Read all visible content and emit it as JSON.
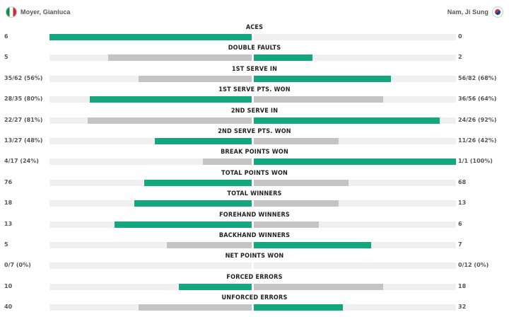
{
  "players": {
    "left": {
      "name": "Moyer, Gianluca",
      "flag": "italy-flag-icon"
    },
    "right": {
      "name": "Nam, Ji Sung",
      "flag": "south-korea-flag-icon"
    }
  },
  "colors": {
    "win": "#14a67f",
    "lose": "#c4c4c4",
    "track": "#f0f0f0"
  },
  "stats": [
    {
      "label": "ACES",
      "left": "6",
      "right": "0",
      "left_fraction": 1.0,
      "right_fraction": 0.0,
      "left_wins": true
    },
    {
      "label": "DOUBLE FAULTS",
      "left": "5",
      "right": "2",
      "left_fraction": 0.71,
      "right_fraction": 0.29,
      "left_wins": false
    },
    {
      "label": "1ST SERVE IN",
      "left": "35/62 (56%)",
      "right": "56/82 (68%)",
      "left_fraction": 0.56,
      "right_fraction": 0.68,
      "left_wins": false
    },
    {
      "label": "1ST SERVE PTS. WON",
      "left": "28/35 (80%)",
      "right": "36/56 (64%)",
      "left_fraction": 0.8,
      "right_fraction": 0.64,
      "left_wins": true
    },
    {
      "label": "2ND SERVE IN",
      "left": "22/27 (81%)",
      "right": "24/26 (92%)",
      "left_fraction": 0.81,
      "right_fraction": 0.92,
      "left_wins": false
    },
    {
      "label": "2ND SERVE PTS. WON",
      "left": "13/27 (48%)",
      "right": "11/26 (42%)",
      "left_fraction": 0.48,
      "right_fraction": 0.42,
      "left_wins": true
    },
    {
      "label": "BREAK POINTS WON",
      "left": "4/17 (24%)",
      "right": "1/1 (100%)",
      "left_fraction": 0.24,
      "right_fraction": 1.0,
      "left_wins": false
    },
    {
      "label": "TOTAL POINTS WON",
      "left": "76",
      "right": "68",
      "left_fraction": 0.53,
      "right_fraction": 0.47,
      "left_wins": true
    },
    {
      "label": "TOTAL WINNERS",
      "left": "18",
      "right": "13",
      "left_fraction": 0.58,
      "right_fraction": 0.42,
      "left_wins": true
    },
    {
      "label": "FOREHAND WINNERS",
      "left": "13",
      "right": "6",
      "left_fraction": 0.68,
      "right_fraction": 0.32,
      "left_wins": true
    },
    {
      "label": "BACKHAND WINNERS",
      "left": "5",
      "right": "7",
      "left_fraction": 0.42,
      "right_fraction": 0.58,
      "left_wins": false
    },
    {
      "label": "NET POINTS WON",
      "left": "0/7 (0%)",
      "right": "0/12 (0%)",
      "left_fraction": 0.0,
      "right_fraction": 0.0,
      "left_wins": false
    },
    {
      "label": "FORCED ERRORS",
      "left": "10",
      "right": "18",
      "left_fraction": 0.36,
      "right_fraction": 0.64,
      "left_wins": true
    },
    {
      "label": "UNFORCED ERRORS",
      "left": "40",
      "right": "32",
      "left_fraction": 0.56,
      "right_fraction": 0.44,
      "left_wins": false
    }
  ]
}
